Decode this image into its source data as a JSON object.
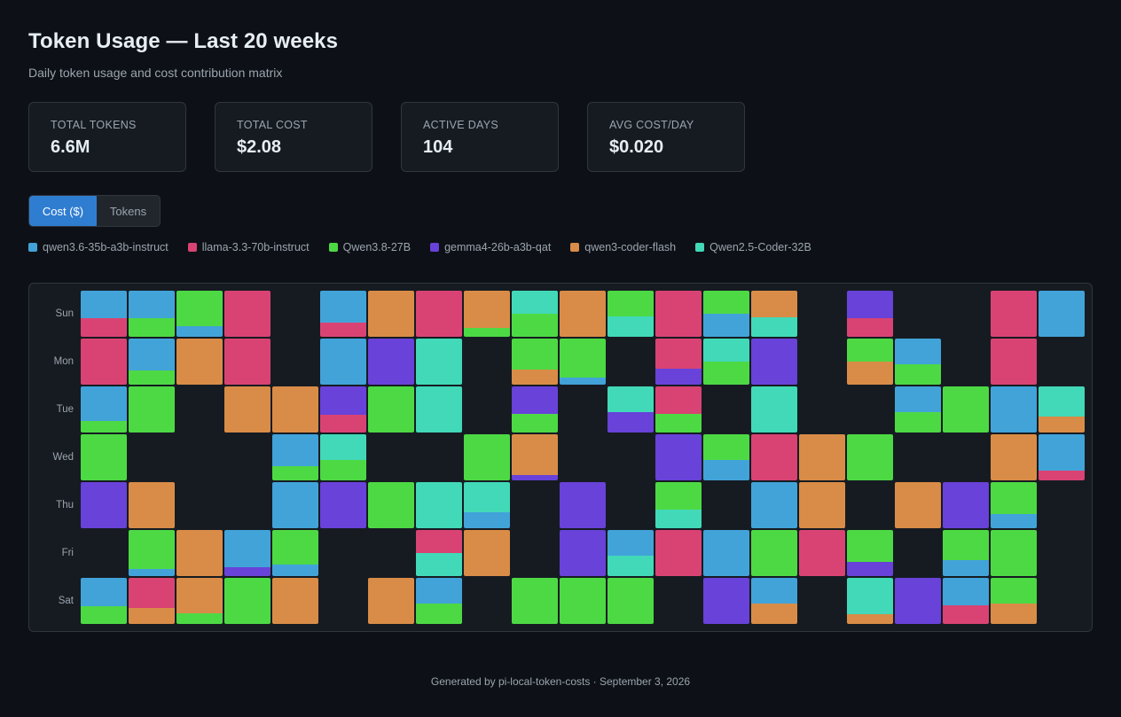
{
  "header": {
    "title": "Token Usage — Last 20 weeks",
    "subtitle": "Daily token usage and cost contribution matrix"
  },
  "stats": [
    {
      "label": "TOTAL TOKENS",
      "value": "6.6M"
    },
    {
      "label": "TOTAL COST",
      "value": "$2.08"
    },
    {
      "label": "ACTIVE DAYS",
      "value": "104"
    },
    {
      "label": "AVG COST/DAY",
      "value": "$0.020"
    }
  ],
  "toggle": {
    "options": [
      "Cost ($)",
      "Tokens"
    ],
    "active_index": 0
  },
  "models": [
    {
      "name": "qwen3.6-35b-a3b-instruct",
      "color": "#42a3d9"
    },
    {
      "name": "llama-3.3-70b-instruct",
      "color": "#d94373"
    },
    {
      "name": "Qwen3.8-27B",
      "color": "#4dd944"
    },
    {
      "name": "gemma4-26b-a3b-qat",
      "color": "#6842d9"
    },
    {
      "name": "qwen3-coder-flash",
      "color": "#d98c47"
    },
    {
      "name": "Qwen2.5-Coder-32B",
      "color": "#42d9b8"
    }
  ],
  "heatmap": {
    "days": [
      "Sun",
      "Mon",
      "Tue",
      "Wed",
      "Thu",
      "Fri",
      "Sat"
    ],
    "note": "cells[week][day] = stacked segments [model_index, share_of_day_cost] top-to-bottom; null = no usage",
    "cells": [
      [
        [
          [
            0,
            0.6
          ],
          [
            1,
            0.4
          ]
        ],
        [
          [
            1,
            1
          ]
        ],
        [
          [
            0,
            0.75
          ],
          [
            2,
            0.25
          ]
        ],
        [
          [
            2,
            1
          ]
        ],
        [
          [
            3,
            1
          ]
        ],
        null,
        [
          [
            0,
            0.62
          ],
          [
            2,
            0.38
          ]
        ]
      ],
      [
        [
          [
            0,
            0.6
          ],
          [
            2,
            0.4
          ]
        ],
        [
          [
            0,
            0.7
          ],
          [
            2,
            0.3
          ]
        ],
        [
          [
            2,
            1
          ]
        ],
        null,
        [
          [
            4,
            1
          ]
        ],
        [
          [
            2,
            0.85
          ],
          [
            0,
            0.15
          ]
        ],
        [
          [
            1,
            0.65
          ],
          [
            4,
            0.35
          ]
        ]
      ],
      [
        [
          [
            2,
            0.77
          ],
          [
            0,
            0.23
          ]
        ],
        [
          [
            4,
            1
          ]
        ],
        null,
        null,
        null,
        [
          [
            4,
            1
          ]
        ],
        [
          [
            4,
            0.77
          ],
          [
            2,
            0.23
          ]
        ]
      ],
      [
        [
          [
            1,
            1
          ]
        ],
        [
          [
            1,
            1
          ]
        ],
        [
          [
            4,
            1
          ]
        ],
        null,
        null,
        [
          [
            0,
            0.8
          ],
          [
            3,
            0.2
          ]
        ],
        [
          [
            2,
            1
          ]
        ]
      ],
      [
        null,
        null,
        [
          [
            4,
            1
          ]
        ],
        [
          [
            0,
            0.7
          ],
          [
            2,
            0.3
          ]
        ],
        [
          [
            0,
            1
          ]
        ],
        [
          [
            2,
            0.75
          ],
          [
            0,
            0.25
          ]
        ],
        [
          [
            4,
            1
          ]
        ]
      ],
      [
        [
          [
            0,
            0.7
          ],
          [
            1,
            0.3
          ]
        ],
        [
          [
            0,
            1
          ]
        ],
        [
          [
            3,
            0.62
          ],
          [
            1,
            0.38
          ]
        ],
        [
          [
            5,
            0.55
          ],
          [
            2,
            0.45
          ]
        ],
        [
          [
            3,
            1
          ]
        ],
        null,
        null
      ],
      [
        [
          [
            4,
            1
          ]
        ],
        [
          [
            3,
            1
          ]
        ],
        [
          [
            2,
            1
          ]
        ],
        null,
        [
          [
            2,
            1
          ]
        ],
        null,
        [
          [
            4,
            1
          ]
        ]
      ],
      [
        [
          [
            1,
            1
          ]
        ],
        [
          [
            5,
            1
          ]
        ],
        [
          [
            5,
            1
          ]
        ],
        null,
        [
          [
            5,
            1
          ]
        ],
        [
          [
            1,
            0.5
          ],
          [
            5,
            0.5
          ]
        ],
        [
          [
            0,
            0.55
          ],
          [
            2,
            0.45
          ]
        ]
      ],
      [
        [
          [
            4,
            0.8
          ],
          [
            2,
            0.2
          ]
        ],
        null,
        null,
        [
          [
            2,
            1
          ]
        ],
        [
          [
            5,
            0.65
          ],
          [
            0,
            0.35
          ]
        ],
        [
          [
            4,
            1
          ]
        ],
        null
      ],
      [
        [
          [
            5,
            0.5
          ],
          [
            2,
            0.5
          ]
        ],
        [
          [
            2,
            0.67
          ],
          [
            4,
            0.33
          ]
        ],
        [
          [
            3,
            0.6
          ],
          [
            2,
            0.4
          ]
        ],
        [
          [
            4,
            0.88
          ],
          [
            3,
            0.12
          ]
        ],
        null,
        null,
        [
          [
            2,
            1
          ]
        ]
      ],
      [
        [
          [
            4,
            1
          ]
        ],
        [
          [
            2,
            0.85
          ],
          [
            0,
            0.15
          ]
        ],
        null,
        null,
        [
          [
            3,
            1
          ]
        ],
        [
          [
            3,
            1
          ]
        ],
        [
          [
            2,
            1
          ]
        ]
      ],
      [
        [
          [
            2,
            0.55
          ],
          [
            5,
            0.45
          ]
        ],
        null,
        [
          [
            5,
            0.55
          ],
          [
            3,
            0.45
          ]
        ],
        null,
        null,
        [
          [
            0,
            0.55
          ],
          [
            5,
            0.45
          ]
        ],
        [
          [
            2,
            1
          ]
        ]
      ],
      [
        [
          [
            1,
            1
          ]
        ],
        [
          [
            1,
            0.65
          ],
          [
            3,
            0.35
          ]
        ],
        [
          [
            1,
            0.6
          ],
          [
            2,
            0.4
          ]
        ],
        [
          [
            3,
            1
          ]
        ],
        [
          [
            2,
            0.6
          ],
          [
            5,
            0.4
          ]
        ],
        [
          [
            1,
            1
          ]
        ],
        null
      ],
      [
        [
          [
            2,
            0.5
          ],
          [
            0,
            0.5
          ]
        ],
        [
          [
            5,
            0.5
          ],
          [
            2,
            0.5
          ]
        ],
        null,
        [
          [
            2,
            0.55
          ],
          [
            0,
            0.45
          ]
        ],
        null,
        [
          [
            0,
            1
          ]
        ],
        [
          [
            3,
            1
          ]
        ]
      ],
      [
        [
          [
            4,
            0.58
          ],
          [
            5,
            0.42
          ]
        ],
        [
          [
            3,
            1
          ]
        ],
        [
          [
            5,
            1
          ]
        ],
        [
          [
            1,
            1
          ]
        ],
        [
          [
            0,
            1
          ]
        ],
        [
          [
            2,
            1
          ]
        ],
        [
          [
            0,
            0.55
          ],
          [
            4,
            0.45
          ]
        ]
      ],
      [
        null,
        null,
        null,
        [
          [
            4,
            1
          ]
        ],
        [
          [
            4,
            1
          ]
        ],
        [
          [
            1,
            1
          ]
        ],
        null
      ],
      [
        [
          [
            3,
            0.6
          ],
          [
            1,
            0.4
          ]
        ],
        [
          [
            2,
            0.5
          ],
          [
            4,
            0.5
          ]
        ],
        null,
        [
          [
            2,
            1
          ]
        ],
        null,
        [
          [
            2,
            0.7
          ],
          [
            3,
            0.3
          ]
        ],
        [
          [
            5,
            0.78
          ],
          [
            4,
            0.22
          ]
        ]
      ],
      [
        null,
        [
          [
            0,
            0.55
          ],
          [
            2,
            0.45
          ]
        ],
        [
          [
            0,
            0.55
          ],
          [
            2,
            0.45
          ]
        ],
        null,
        [
          [
            4,
            1
          ]
        ],
        null,
        [
          [
            3,
            1
          ]
        ]
      ],
      [
        null,
        null,
        [
          [
            2,
            1
          ]
        ],
        null,
        [
          [
            3,
            1
          ]
        ],
        [
          [
            2,
            0.65
          ],
          [
            0,
            0.35
          ]
        ],
        [
          [
            0,
            0.6
          ],
          [
            1,
            0.4
          ]
        ]
      ],
      [
        [
          [
            1,
            1
          ]
        ],
        [
          [
            1,
            1
          ]
        ],
        [
          [
            0,
            1
          ]
        ],
        [
          [
            4,
            1
          ]
        ],
        [
          [
            2,
            0.7
          ],
          [
            0,
            0.3
          ]
        ],
        [
          [
            2,
            1
          ]
        ],
        [
          [
            2,
            0.55
          ],
          [
            4,
            0.45
          ]
        ]
      ],
      [
        [
          [
            0,
            1
          ]
        ],
        null,
        [
          [
            5,
            0.65
          ],
          [
            4,
            0.35
          ]
        ],
        [
          [
            0,
            0.78
          ],
          [
            1,
            0.22
          ]
        ],
        null,
        null,
        null
      ]
    ]
  },
  "footer": {
    "text": "Generated by pi-local-token-costs · September 3, 2026"
  }
}
